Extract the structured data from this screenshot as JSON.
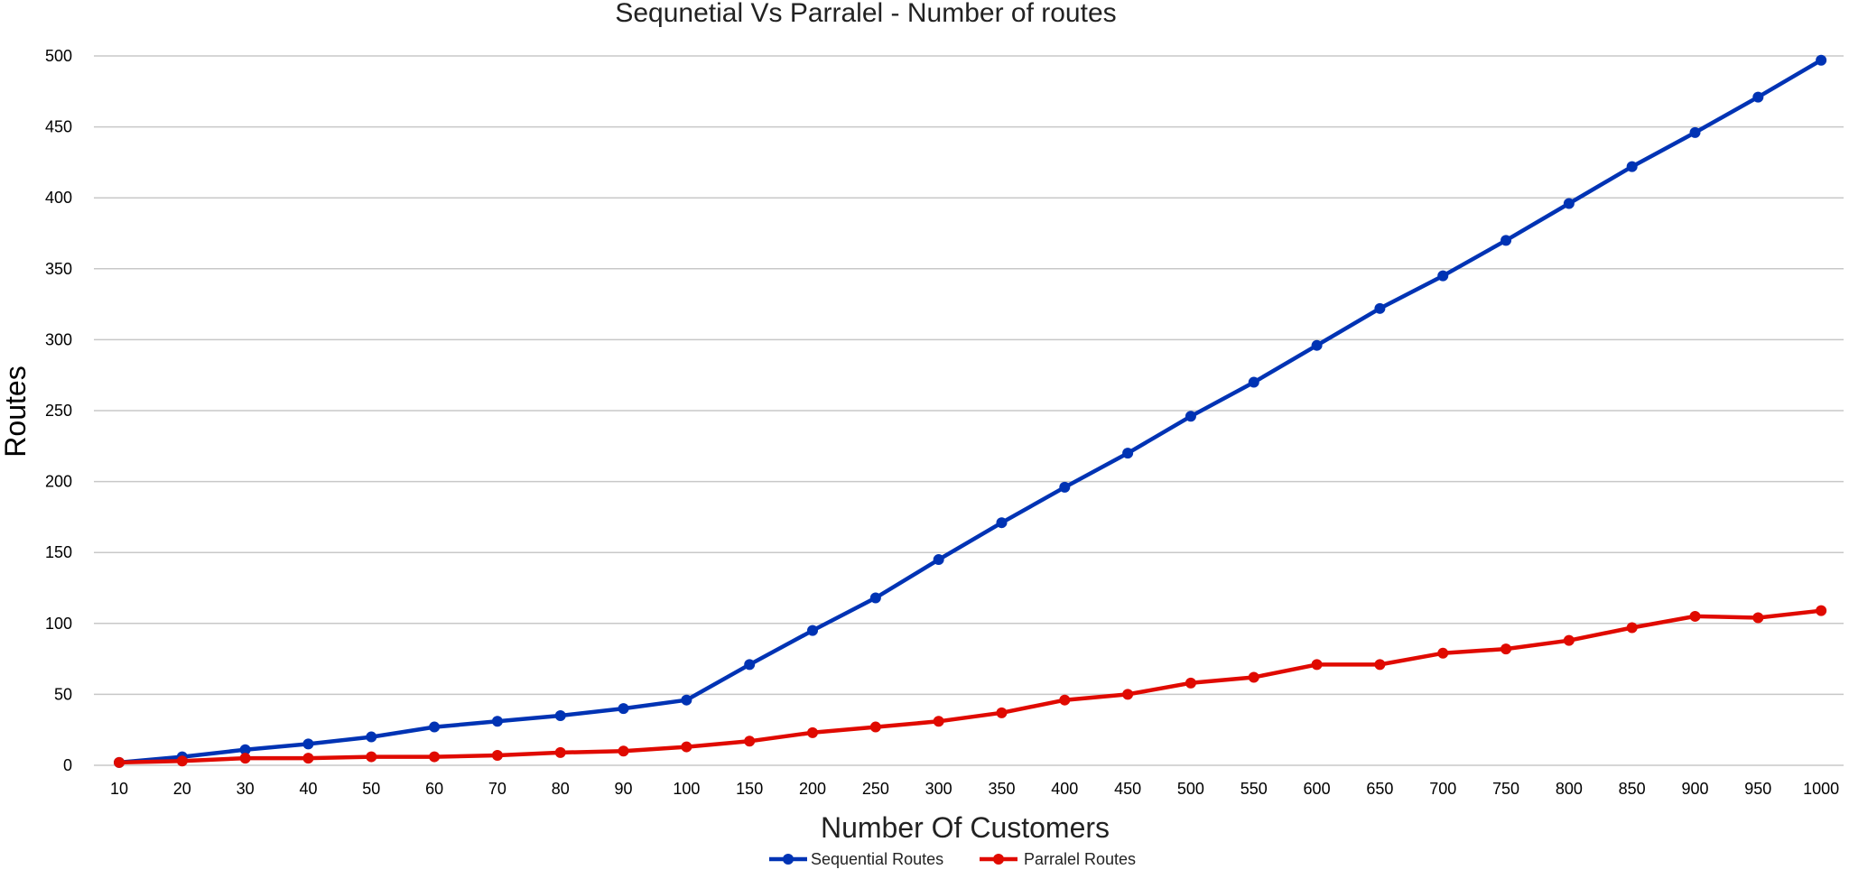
{
  "chart_data": {
    "type": "line",
    "title": "Sequnetial Vs Parralel - Number of routes",
    "xlabel": "Number Of Customers",
    "ylabel": "Routes",
    "categories": [
      "10",
      "20",
      "30",
      "40",
      "50",
      "60",
      "70",
      "80",
      "90",
      "100",
      "150",
      "200",
      "250",
      "300",
      "350",
      "400",
      "450",
      "500",
      "550",
      "600",
      "650",
      "700",
      "750",
      "800",
      "850",
      "900",
      "950",
      "1000"
    ],
    "ylim": [
      0,
      500
    ],
    "yticks": [
      0,
      50,
      100,
      150,
      200,
      250,
      300,
      350,
      400,
      450,
      500
    ],
    "grid": true,
    "legend_position": "bottom",
    "series": [
      {
        "name": "Sequential Routes",
        "color": "#0033B4",
        "values": [
          2,
          6,
          11,
          15,
          20,
          27,
          31,
          35,
          40,
          46,
          71,
          95,
          118,
          145,
          171,
          196,
          220,
          246,
          270,
          296,
          322,
          345,
          370,
          396,
          422,
          446,
          471,
          497
        ]
      },
      {
        "name": "Parralel Routes",
        "color": "#E00A00",
        "values": [
          2,
          3,
          5,
          5,
          6,
          6,
          7,
          9,
          10,
          13,
          17,
          23,
          27,
          31,
          37,
          46,
          50,
          58,
          62,
          71,
          71,
          79,
          82,
          88,
          97,
          105,
          104,
          109
        ]
      }
    ]
  }
}
